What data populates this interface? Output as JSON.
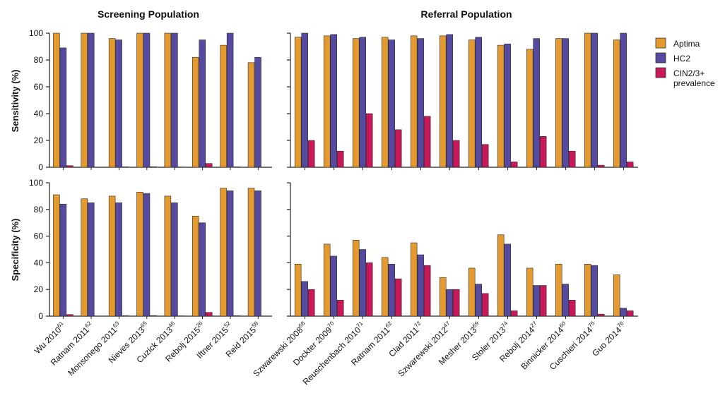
{
  "colors": {
    "aptima": "#E59A2F",
    "hc2": "#554AA0",
    "cin": "#C8185A",
    "axis": "#222222"
  },
  "legend": {
    "items": [
      "Aptima",
      "HC2",
      "CIN2/3+",
      "prevalence"
    ]
  },
  "chart_data": [
    {
      "type": "bar",
      "panel": "screening-sensitivity",
      "title": "Screening Population",
      "ylabel": "Sensitivity (%)",
      "ylim": [
        0,
        100
      ],
      "yticks": [
        "0",
        "20",
        "40",
        "60",
        "80",
        "100"
      ],
      "categories": [
        "Wu 2010",
        "Ratnam 2011",
        "Monsonego 2011",
        "Nieves 2013",
        "Cuzick 2013",
        "Rebolj 2015",
        "Iftner 2015",
        "Reid 2015"
      ],
      "series": [
        {
          "name": "Aptima",
          "values": [
            100,
            100,
            96,
            100,
            100,
            82,
            91,
            78
          ]
        },
        {
          "name": "HC2",
          "values": [
            89,
            100,
            95,
            100,
            100,
            95,
            100,
            82
          ]
        },
        {
          "name": "CIN2/3+ prevalence",
          "values": [
            1.2,
            0,
            0.3,
            0.4,
            0.2,
            2.8,
            0.3,
            0
          ]
        }
      ]
    },
    {
      "type": "bar",
      "panel": "referral-sensitivity",
      "title": "Referral Population",
      "ylabel": "",
      "ylim": [
        0,
        100
      ],
      "categories": [
        "Szwarewski 2008",
        "Dockter 2009",
        "Reuschenbach 2010",
        "Ratnam 2011",
        "Clad 2011",
        "Szwarewski 2012",
        "Mesher 2013",
        "Stoler 2013",
        "Rebolj 2014",
        "Binnicker 2014",
        "Cuschieri 2014",
        "Guo 2014"
      ],
      "series": [
        {
          "name": "Aptima",
          "values": [
            97,
            98,
            96,
            97,
            98,
            98,
            95,
            91,
            88,
            96,
            100,
            95
          ]
        },
        {
          "name": "HC2",
          "values": [
            100,
            99,
            97,
            95,
            96,
            99,
            97,
            92,
            96,
            96,
            100,
            100
          ]
        },
        {
          "name": "CIN2/3+ prevalence",
          "values": [
            20,
            12,
            40,
            28,
            38,
            20,
            17,
            4,
            23,
            12,
            1.5,
            4
          ]
        }
      ]
    },
    {
      "type": "bar",
      "panel": "screening-specificity",
      "ylabel": "Specificity (%)",
      "ylim": [
        0,
        100
      ],
      "yticks": [
        "0",
        "20",
        "40",
        "60",
        "80",
        "100"
      ],
      "categories": [
        "Wu 2010",
        "Ratnam 2011",
        "Monsonego 2011",
        "Nieves 2013",
        "Cuzick 2013",
        "Rebolj 2015",
        "Iftner 2015",
        "Reid 2015"
      ],
      "series": [
        {
          "name": "Aptima",
          "values": [
            91,
            88,
            90,
            93,
            90,
            75,
            96,
            96
          ]
        },
        {
          "name": "HC2",
          "values": [
            84,
            85,
            85,
            92,
            85,
            70,
            94,
            94
          ]
        },
        {
          "name": "CIN2/3+ prevalence",
          "values": [
            1.2,
            0,
            0.3,
            0.4,
            0.2,
            2.8,
            0.3,
            0
          ]
        }
      ]
    },
    {
      "type": "bar",
      "panel": "referral-specificity",
      "ylabel": "",
      "ylim": [
        0,
        100
      ],
      "categories": [
        "Szwarewski 2008",
        "Dockter 2009",
        "Reuschenbach 2010",
        "Ratnam 2011",
        "Clad 2011",
        "Szwarewski 2012",
        "Mesher 2013",
        "Stoler 2013",
        "Rebolj 2014",
        "Binnicker 2014",
        "Cuschieri 2014",
        "Guo 2014"
      ],
      "series": [
        {
          "name": "Aptima",
          "values": [
            39,
            54,
            57,
            44,
            55,
            29,
            36,
            61,
            36,
            39,
            39,
            31
          ]
        },
        {
          "name": "HC2",
          "values": [
            26,
            45,
            50,
            39,
            46,
            20,
            24,
            54,
            23,
            24,
            38,
            6
          ]
        },
        {
          "name": "CIN2/3+ prevalence",
          "values": [
            20,
            12,
            40,
            28,
            38,
            20,
            17,
            4,
            23,
            12,
            1.5,
            4
          ]
        }
      ]
    }
  ],
  "xlabels": {
    "screening": [
      {
        "name": "Wu 2010",
        "ref": "61"
      },
      {
        "name": "Ratnam 2011",
        "ref": "62"
      },
      {
        "name": "Monsonego 2011",
        "ref": "63"
      },
      {
        "name": "Nieves 2013",
        "ref": "65"
      },
      {
        "name": "Cuzick 2013",
        "ref": "46"
      },
      {
        "name": "Rebolj 2015",
        "ref": "26"
      },
      {
        "name": "Iftner 2015",
        "ref": "52"
      },
      {
        "name": "Reid 2015",
        "ref": "58"
      }
    ],
    "referral": [
      {
        "name": "Szwarewski 2008",
        "ref": "68"
      },
      {
        "name": "Dockter 2009",
        "ref": "70"
      },
      {
        "name": "Reuschenbach 2010",
        "ref": "71"
      },
      {
        "name": "Ratnam 2011",
        "ref": "62"
      },
      {
        "name": "Clad 2011",
        "ref": "72"
      },
      {
        "name": "Szwarewski 2012",
        "ref": "47"
      },
      {
        "name": "Mesher 2013",
        "ref": "69"
      },
      {
        "name": "Stoler 2013",
        "ref": "74"
      },
      {
        "name": "Rebolj 2014",
        "ref": "27"
      },
      {
        "name": "Binnicker 2014",
        "ref": "60"
      },
      {
        "name": "Cuschieri 2014",
        "ref": "75"
      },
      {
        "name": "Guo 2014",
        "ref": "76"
      }
    ]
  }
}
